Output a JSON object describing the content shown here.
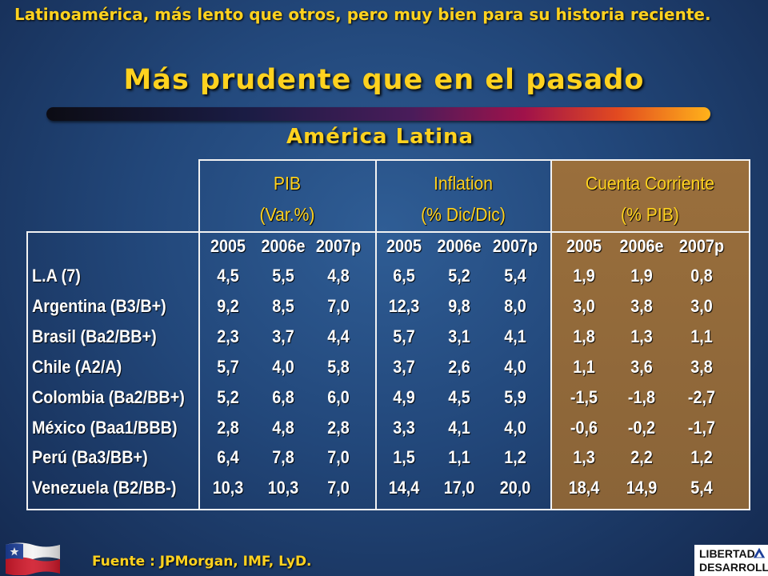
{
  "slide": {
    "top_text": "Latinoamérica, más lento que otros, pero muy bien para su historia reciente.",
    "title": "Más prudente que en el pasado",
    "subtitle": "América Latina",
    "source": "Fuente : JPMorgan, IMF, LyD.",
    "logo_line1": "LIBERTAD",
    "logo_line2": "DESARROLLO"
  },
  "table": {
    "groups": [
      {
        "line1": "PIB",
        "line2": "(Var.%)"
      },
      {
        "line1": "Inflation",
        "line2": "(% Dic/Dic)"
      },
      {
        "line1": "Cuenta Corriente",
        "line2": "(% PIB)"
      }
    ],
    "years": [
      "2005",
      "2006e",
      "2007p",
      "2005",
      "2006e",
      "2007p",
      "2005",
      "2006e",
      "2007p"
    ],
    "rows": [
      {
        "label": "L.A (7)",
        "values": [
          "4,5",
          "5,5",
          "4,8",
          "6,5",
          "5,2",
          "5,4",
          "1,9",
          "1,9",
          "0,8"
        ]
      },
      {
        "label": "Argentina (B3/B+)",
        "values": [
          "9,2",
          "8,5",
          "7,0",
          "12,3",
          "9,8",
          "8,0",
          "3,0",
          "3,8",
          "3,0"
        ]
      },
      {
        "label": "Brasil (Ba2/BB+)",
        "values": [
          "2,3",
          "3,7",
          "4,4",
          "5,7",
          "3,1",
          "4,1",
          "1,8",
          "1,3",
          "1,1"
        ]
      },
      {
        "label": "Chile (A2/A)",
        "values": [
          "5,7",
          "4,0",
          "5,8",
          "3,7",
          "2,6",
          "4,0",
          "1,1",
          "3,6",
          "3,8"
        ]
      },
      {
        "label": "Colombia (Ba2/BB+)",
        "values": [
          "5,2",
          "6,8",
          "6,0",
          "4,9",
          "4,5",
          "5,9",
          "-1,5",
          "-1,8",
          "-2,7"
        ]
      },
      {
        "label": "México (Baa1/BBB)",
        "values": [
          "2,8",
          "4,8",
          "2,8",
          "3,3",
          "4,1",
          "4,0",
          "-0,6",
          "-0,2",
          "-1,7"
        ]
      },
      {
        "label": "Perú (Ba3/BB+)",
        "values": [
          "6,4",
          "7,8",
          "7,0",
          "1,5",
          "1,1",
          "1,2",
          "1,3",
          "2,2",
          "1,2"
        ]
      },
      {
        "label": "Venezuela (B2/BB-)",
        "values": [
          "10,3",
          "10,3",
          "7,0",
          "14,4",
          "17,0",
          "20,0",
          "18,4",
          "14,9",
          "5,4"
        ]
      }
    ]
  },
  "colors": {
    "accent_yellow": "#ffd21f",
    "current_account_panel": "#9a6f3c",
    "background": "#22477a"
  }
}
